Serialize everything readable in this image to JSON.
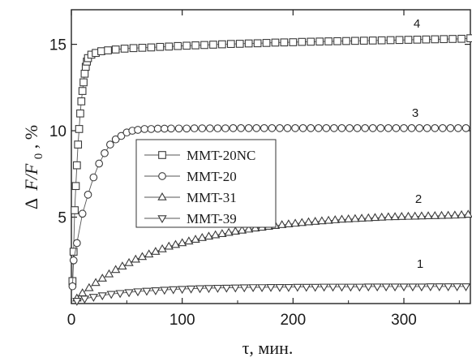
{
  "chart_data": {
    "type": "scatter",
    "xlabel": "τ, мин.",
    "ylabel": "Δ F/F₀, %",
    "ylabel_parts": {
      "delta": "Δ",
      "f": "F/F",
      "sub": "0",
      "unit": ", %"
    },
    "xlim": [
      0,
      360
    ],
    "ylim": [
      0,
      17
    ],
    "xticks": [
      0,
      100,
      200,
      300
    ],
    "yticks": [
      5,
      10,
      15
    ],
    "grid": false,
    "legend_position": "center-left",
    "series": [
      {
        "name": "MMT-20NC",
        "label": "4",
        "marker": "square",
        "x": [
          1,
          2,
          3,
          4,
          5,
          6,
          7,
          8,
          9,
          10,
          11,
          12,
          13,
          14,
          15,
          18,
          22,
          27,
          33,
          40,
          48,
          56,
          64,
          72,
          80,
          88,
          96,
          104,
          112,
          120,
          128,
          136,
          144,
          152,
          160,
          168,
          176,
          184,
          192,
          200,
          208,
          216,
          224,
          232,
          240,
          248,
          256,
          264,
          272,
          280,
          288,
          296,
          304,
          312,
          320,
          328,
          336,
          344,
          352,
          360
        ],
        "y": [
          1.3,
          3.0,
          5.4,
          6.8,
          8.0,
          9.2,
          10.1,
          11.0,
          11.7,
          12.3,
          12.8,
          13.3,
          13.7,
          14.0,
          14.2,
          14.4,
          14.5,
          14.6,
          14.65,
          14.7,
          14.75,
          14.78,
          14.8,
          14.82,
          14.85,
          14.87,
          14.9,
          14.92,
          14.94,
          14.96,
          14.98,
          15.0,
          15.02,
          15.03,
          15.05,
          15.06,
          15.08,
          15.1,
          15.11,
          15.12,
          15.14,
          15.15,
          15.16,
          15.17,
          15.18,
          15.19,
          15.2,
          15.21,
          15.22,
          15.23,
          15.24,
          15.25,
          15.26,
          15.27,
          15.28,
          15.29,
          15.3,
          15.31,
          15.32,
          15.35
        ]
      },
      {
        "name": "MMT-20",
        "label": "3",
        "marker": "circle",
        "x": [
          1,
          2,
          5,
          10,
          15,
          20,
          25,
          30,
          35,
          40,
          45,
          50,
          55,
          60,
          66,
          72,
          78,
          84,
          90,
          97,
          104,
          111,
          118,
          125,
          132,
          139,
          146,
          153,
          160,
          167,
          174,
          181,
          188,
          195,
          202,
          209,
          216,
          223,
          230,
          237,
          244,
          251,
          258,
          265,
          272,
          279,
          286,
          293,
          300,
          307,
          314,
          321,
          328,
          335,
          342,
          349,
          356
        ],
        "y": [
          1.0,
          2.5,
          3.5,
          5.2,
          6.3,
          7.3,
          8.1,
          8.7,
          9.2,
          9.5,
          9.7,
          9.9,
          10.0,
          10.05,
          10.1,
          10.1,
          10.12,
          10.12,
          10.13,
          10.13,
          10.13,
          10.14,
          10.14,
          10.14,
          10.14,
          10.14,
          10.15,
          10.15,
          10.15,
          10.15,
          10.15,
          10.15,
          10.15,
          10.15,
          10.15,
          10.15,
          10.15,
          10.15,
          10.15,
          10.15,
          10.15,
          10.15,
          10.15,
          10.15,
          10.15,
          10.15,
          10.15,
          10.15,
          10.15,
          10.15,
          10.15,
          10.15,
          10.15,
          10.15,
          10.15,
          10.15,
          10.15
        ]
      },
      {
        "name": "MMT-31",
        "label": "2",
        "marker": "triangle-up",
        "x": [
          5,
          10,
          16,
          22,
          28,
          34,
          40,
          46,
          52,
          58,
          64,
          70,
          76,
          82,
          88,
          94,
          100,
          106,
          112,
          118,
          124,
          130,
          136,
          142,
          148,
          154,
          160,
          166,
          172,
          178,
          184,
          190,
          196,
          202,
          208,
          214,
          220,
          226,
          232,
          238,
          244,
          250,
          256,
          262,
          268,
          274,
          280,
          286,
          292,
          298,
          304,
          310,
          316,
          322,
          328,
          334,
          340,
          346,
          352,
          358
        ],
        "y": [
          0.3,
          0.6,
          0.9,
          1.2,
          1.45,
          1.7,
          1.95,
          2.15,
          2.35,
          2.55,
          2.7,
          2.85,
          3.0,
          3.15,
          3.3,
          3.4,
          3.5,
          3.6,
          3.7,
          3.8,
          3.88,
          3.96,
          4.03,
          4.1,
          4.17,
          4.23,
          4.29,
          4.35,
          4.4,
          4.45,
          4.5,
          4.55,
          4.59,
          4.63,
          4.67,
          4.71,
          4.74,
          4.77,
          4.8,
          4.83,
          4.86,
          4.88,
          4.9,
          4.92,
          4.94,
          4.96,
          4.98,
          5.0,
          5.01,
          5.02,
          5.03,
          5.04,
          5.05,
          5.06,
          5.07,
          5.08,
          5.09,
          5.1,
          5.12,
          5.15
        ]
      },
      {
        "name": "MMT-39",
        "label": "1",
        "marker": "triangle-down",
        "x": [
          5,
          12,
          20,
          28,
          36,
          44,
          52,
          60,
          68,
          76,
          84,
          92,
          100,
          108,
          116,
          124,
          132,
          140,
          148,
          156,
          164,
          172,
          180,
          188,
          196,
          204,
          212,
          220,
          228,
          236,
          244,
          252,
          260,
          268,
          276,
          284,
          292,
          300,
          308,
          316,
          324,
          332,
          340,
          348,
          356
        ],
        "y": [
          0.15,
          0.28,
          0.38,
          0.47,
          0.55,
          0.6,
          0.65,
          0.7,
          0.73,
          0.76,
          0.79,
          0.82,
          0.84,
          0.86,
          0.88,
          0.89,
          0.9,
          0.91,
          0.92,
          0.93,
          0.94,
          0.94,
          0.95,
          0.95,
          0.95,
          0.96,
          0.96,
          0.96,
          0.97,
          0.97,
          0.97,
          0.97,
          0.97,
          0.98,
          0.98,
          0.98,
          0.98,
          0.98,
          0.98,
          0.98,
          0.99,
          0.99,
          0.99,
          0.99,
          0.99
        ]
      }
    ]
  }
}
